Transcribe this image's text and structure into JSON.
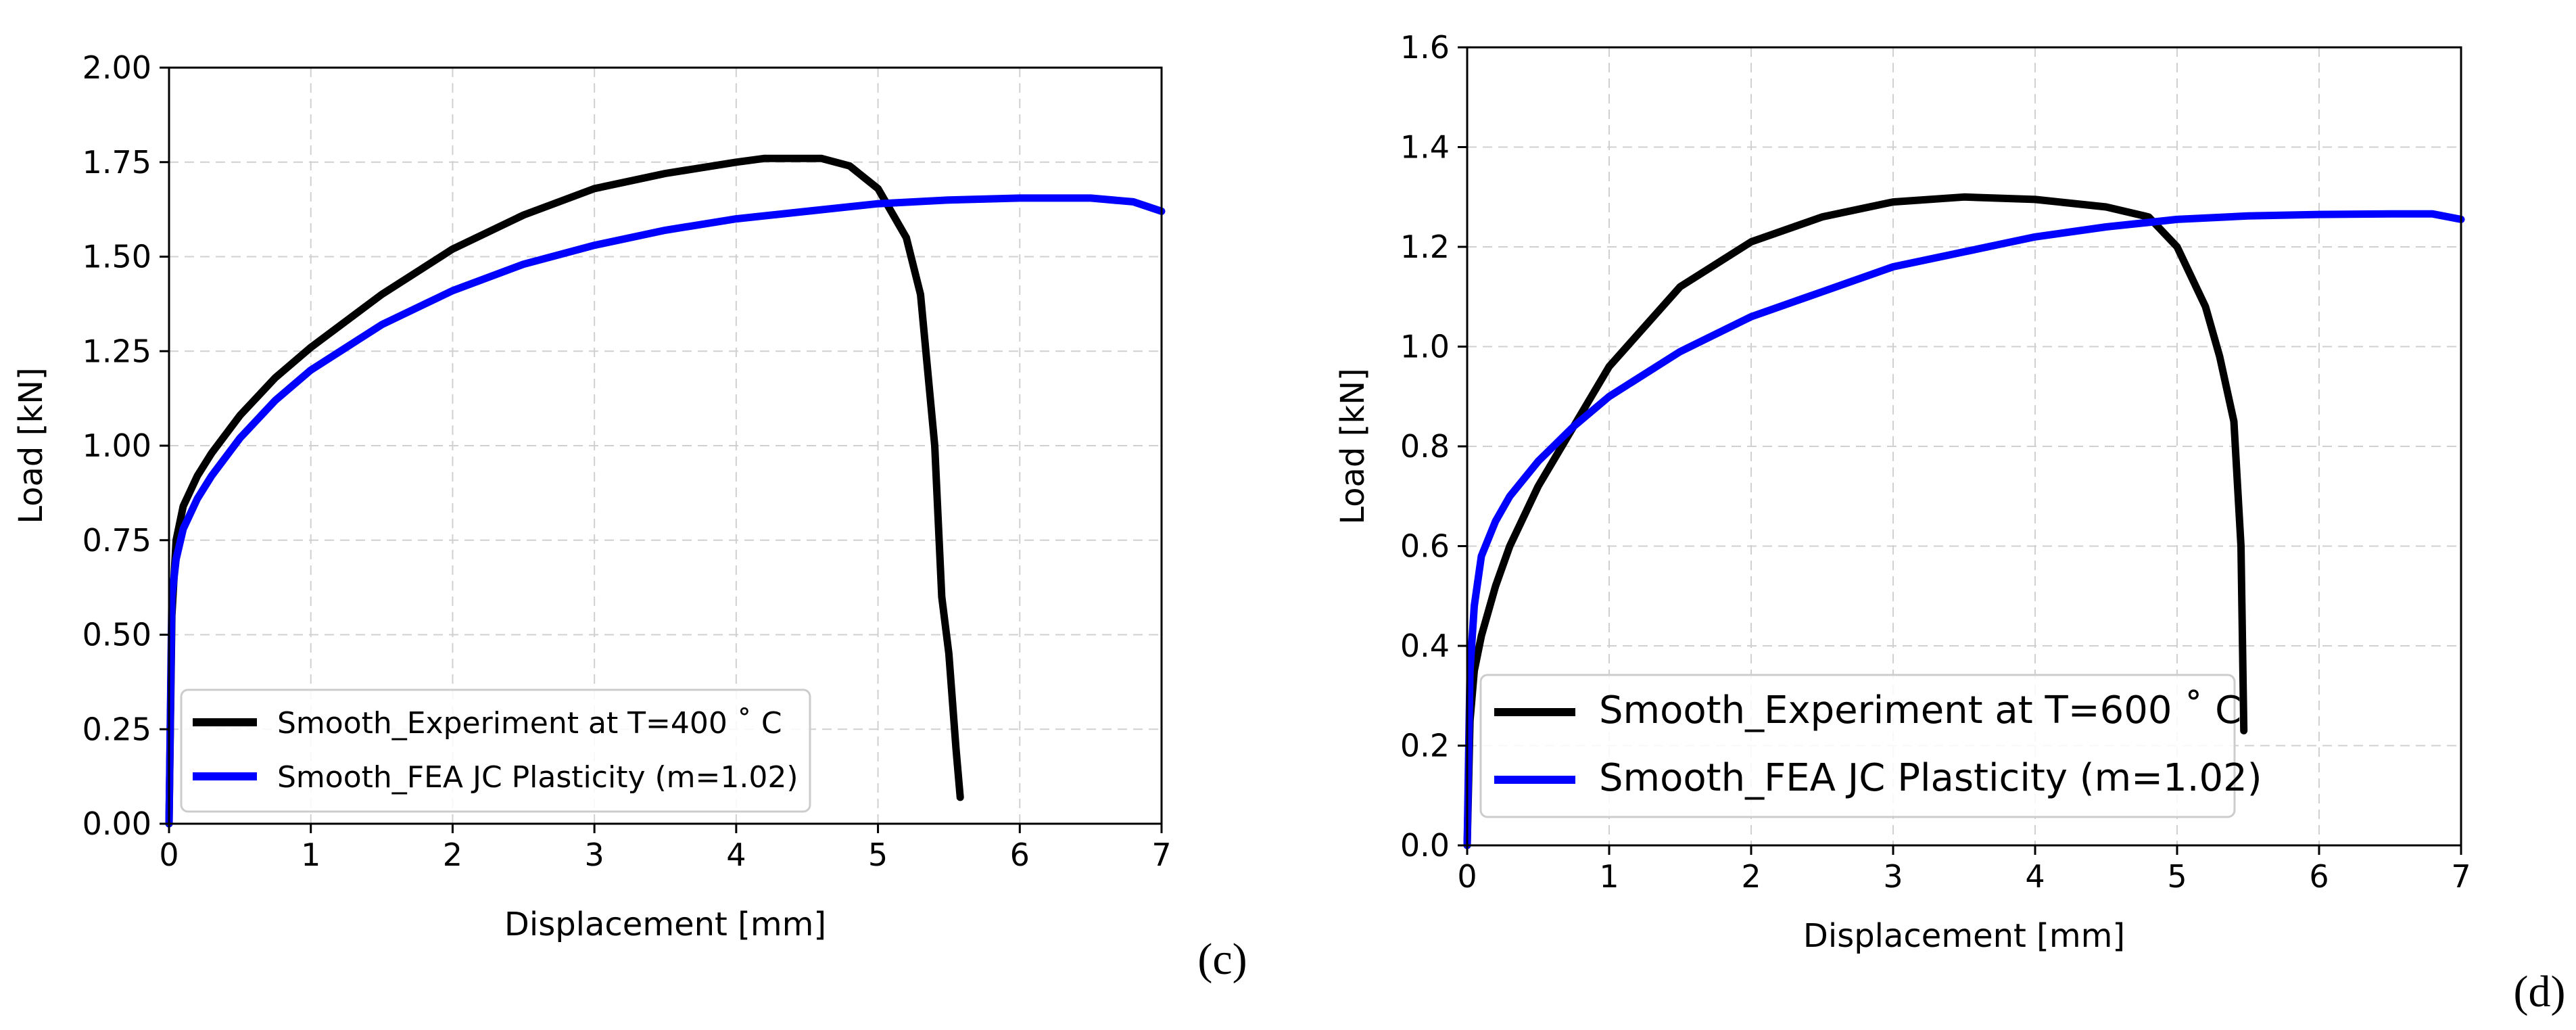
{
  "chart_data": [
    {
      "type": "line",
      "panel_label": "(c)",
      "title": "",
      "xlabel": "Displacement [mm]",
      "ylabel": "Load [kN]",
      "xlim": [
        0,
        7
      ],
      "ylim": [
        0,
        2.0
      ],
      "xticks": [
        0,
        1,
        2,
        3,
        4,
        5,
        6,
        7
      ],
      "xtick_labels": [
        "0",
        "1",
        "2",
        "3",
        "4",
        "5",
        "6",
        "7"
      ],
      "yticks": [
        0,
        0.25,
        0.5,
        0.75,
        1.0,
        1.25,
        1.5,
        1.75,
        2.0
      ],
      "ytick_labels": [
        "0.00",
        "0.25",
        "0.50",
        "0.75",
        "1.00",
        "1.25",
        "1.50",
        "1.75",
        "2.00"
      ],
      "grid": true,
      "legend_position": "lower-left",
      "series": [
        {
          "name": "Smooth_Experiment at T=400$^\\circ$C",
          "legend_label": "Smooth_Experiment at T=400 ˚ C",
          "color": "#000000",
          "x": [
            0.0,
            0.02,
            0.05,
            0.1,
            0.2,
            0.3,
            0.5,
            0.75,
            1.0,
            1.5,
            2.0,
            2.5,
            3.0,
            3.5,
            4.0,
            4.2,
            4.4,
            4.6,
            4.8,
            5.0,
            5.2,
            5.3,
            5.4,
            5.45,
            5.5,
            5.55,
            5.58
          ],
          "y": [
            0.0,
            0.55,
            0.75,
            0.84,
            0.92,
            0.98,
            1.08,
            1.18,
            1.26,
            1.4,
            1.52,
            1.61,
            1.68,
            1.72,
            1.75,
            1.76,
            1.76,
            1.76,
            1.74,
            1.68,
            1.55,
            1.4,
            1.0,
            0.6,
            0.45,
            0.2,
            0.07
          ]
        },
        {
          "name": "Smooth_FEA JC Plasticity (m=1.02)",
          "legend_label": "Smooth_FEA JC Plasticity (m=1.02)",
          "color": "#0000ff",
          "x": [
            0.0,
            0.02,
            0.05,
            0.1,
            0.2,
            0.3,
            0.5,
            0.75,
            1.0,
            1.5,
            2.0,
            2.5,
            3.0,
            3.5,
            4.0,
            4.5,
            5.0,
            5.5,
            6.0,
            6.5,
            6.8,
            7.0
          ],
          "y": [
            0.0,
            0.6,
            0.7,
            0.78,
            0.86,
            0.92,
            1.02,
            1.12,
            1.2,
            1.32,
            1.41,
            1.48,
            1.53,
            1.57,
            1.6,
            1.62,
            1.64,
            1.65,
            1.655,
            1.655,
            1.645,
            1.62
          ]
        }
      ]
    },
    {
      "type": "line",
      "panel_label": "(d)",
      "title": "",
      "xlabel": "Displacement [mm]",
      "ylabel": "Load [kN]",
      "xlim": [
        0,
        7
      ],
      "ylim": [
        0,
        1.6
      ],
      "xticks": [
        0,
        1,
        2,
        3,
        4,
        5,
        6,
        7
      ],
      "xtick_labels": [
        "0",
        "1",
        "2",
        "3",
        "4",
        "5",
        "6",
        "7"
      ],
      "yticks": [
        0,
        0.2,
        0.4,
        0.6,
        0.8,
        1.0,
        1.2,
        1.4,
        1.6
      ],
      "ytick_labels": [
        "0.0",
        "0.2",
        "0.4",
        "0.6",
        "0.8",
        "1.0",
        "1.2",
        "1.4",
        "1.6"
      ],
      "grid": true,
      "legend_position": "lower-left",
      "series": [
        {
          "name": "Smooth_Experiment at T=600$^\\circ$C",
          "legend_label": "Smooth_Experiment at T=600 ˚ C",
          "color": "#000000",
          "x": [
            0.0,
            0.02,
            0.05,
            0.1,
            0.2,
            0.3,
            0.5,
            0.75,
            1.0,
            1.5,
            2.0,
            2.5,
            3.0,
            3.5,
            4.0,
            4.5,
            4.8,
            5.0,
            5.2,
            5.3,
            5.4,
            5.45,
            5.47
          ],
          "y": [
            0.0,
            0.25,
            0.35,
            0.42,
            0.52,
            0.6,
            0.72,
            0.84,
            0.96,
            1.12,
            1.21,
            1.26,
            1.29,
            1.3,
            1.295,
            1.28,
            1.26,
            1.2,
            1.08,
            0.98,
            0.85,
            0.6,
            0.23
          ]
        },
        {
          "name": "Smooth_FEA JC Plasticity (m=1.02)",
          "legend_label": "Smooth_FEA JC Plasticity (m=1.02)",
          "color": "#0000ff",
          "x": [
            0.0,
            0.02,
            0.05,
            0.1,
            0.2,
            0.3,
            0.5,
            0.75,
            1.0,
            1.5,
            2.0,
            2.5,
            3.0,
            3.5,
            4.0,
            4.5,
            5.0,
            5.5,
            6.0,
            6.5,
            6.8,
            7.0
          ],
          "y": [
            0.0,
            0.35,
            0.48,
            0.58,
            0.65,
            0.7,
            0.77,
            0.84,
            0.9,
            0.99,
            1.06,
            1.11,
            1.16,
            1.19,
            1.22,
            1.24,
            1.255,
            1.262,
            1.265,
            1.266,
            1.266,
            1.255
          ]
        }
      ]
    }
  ]
}
